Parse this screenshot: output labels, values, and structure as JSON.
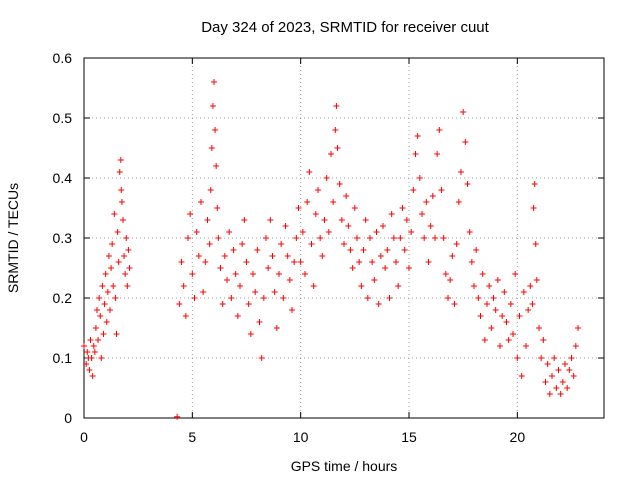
{
  "chart_data": {
    "type": "scatter",
    "title": "Day 324 of 2023, SRMTID for receiver cuut",
    "xlabel": "GPS time / hours",
    "ylabel": "SRMTID / TECUs",
    "xlim": [
      0,
      24
    ],
    "ylim": [
      0,
      0.6
    ],
    "xticks": [
      0,
      5,
      10,
      15,
      20
    ],
    "xtick_labels": [
      "0",
      "5",
      "10",
      "15",
      "20"
    ],
    "yticks": [
      0,
      0.1,
      0.2,
      0.3,
      0.4,
      0.5,
      0.6
    ],
    "ytick_labels": [
      "0",
      "0.1",
      "0.2",
      "0.3",
      "0.4",
      "0.5",
      "0.6"
    ],
    "grid": true,
    "marker": "+",
    "color": "#ff0000",
    "series": [
      {
        "name": "SRMTID",
        "points": [
          [
            0.0,
            0.12
          ],
          [
            0.1,
            0.09
          ],
          [
            0.15,
            0.11
          ],
          [
            0.2,
            0.1
          ],
          [
            0.25,
            0.08
          ],
          [
            0.3,
            0.13
          ],
          [
            0.35,
            0.1
          ],
          [
            0.4,
            0.07
          ],
          [
            0.45,
            0.12
          ],
          [
            0.5,
            0.11
          ],
          [
            0.55,
            0.15
          ],
          [
            0.6,
            0.18
          ],
          [
            0.65,
            0.13
          ],
          [
            0.7,
            0.2
          ],
          [
            0.75,
            0.17
          ],
          [
            0.8,
            0.1
          ],
          [
            0.85,
            0.22
          ],
          [
            0.9,
            0.14
          ],
          [
            0.95,
            0.19
          ],
          [
            1.0,
            0.24
          ],
          [
            1.05,
            0.16
          ],
          [
            1.1,
            0.21
          ],
          [
            1.15,
            0.27
          ],
          [
            1.2,
            0.18
          ],
          [
            1.25,
            0.25
          ],
          [
            1.3,
            0.29
          ],
          [
            1.35,
            0.22
          ],
          [
            1.4,
            0.34
          ],
          [
            1.45,
            0.2
          ],
          [
            1.5,
            0.14
          ],
          [
            1.55,
            0.31
          ],
          [
            1.6,
            0.26
          ],
          [
            1.65,
            0.41
          ],
          [
            1.7,
            0.43
          ],
          [
            1.72,
            0.38
          ],
          [
            1.75,
            0.36
          ],
          [
            1.8,
            0.33
          ],
          [
            1.85,
            0.27
          ],
          [
            1.9,
            0.24
          ],
          [
            1.95,
            0.3
          ],
          [
            2.0,
            0.22
          ],
          [
            2.05,
            0.28
          ],
          [
            2.1,
            0.25
          ],
          [
            4.3,
            0.002
          ],
          [
            4.4,
            0.19
          ],
          [
            4.5,
            0.26
          ],
          [
            4.6,
            0.22
          ],
          [
            4.7,
            0.17
          ],
          [
            4.8,
            0.3
          ],
          [
            4.9,
            0.34
          ],
          [
            5.0,
            0.24
          ],
          [
            5.1,
            0.2
          ],
          [
            5.2,
            0.31
          ],
          [
            5.3,
            0.27
          ],
          [
            5.4,
            0.36
          ],
          [
            5.5,
            0.21
          ],
          [
            5.6,
            0.26
          ],
          [
            5.7,
            0.33
          ],
          [
            5.8,
            0.29
          ],
          [
            5.85,
            0.38
          ],
          [
            5.9,
            0.45
          ],
          [
            5.95,
            0.52
          ],
          [
            6.0,
            0.56
          ],
          [
            6.05,
            0.48
          ],
          [
            6.1,
            0.42
          ],
          [
            6.15,
            0.35
          ],
          [
            6.2,
            0.3
          ],
          [
            6.3,
            0.25
          ],
          [
            6.4,
            0.19
          ],
          [
            6.5,
            0.27
          ],
          [
            6.6,
            0.23
          ],
          [
            6.7,
            0.31
          ],
          [
            6.8,
            0.2
          ],
          [
            6.9,
            0.28
          ],
          [
            7.0,
            0.24
          ],
          [
            7.1,
            0.17
          ],
          [
            7.2,
            0.22
          ],
          [
            7.3,
            0.29
          ],
          [
            7.4,
            0.33
          ],
          [
            7.5,
            0.26
          ],
          [
            7.6,
            0.19
          ],
          [
            7.7,
            0.14
          ],
          [
            7.8,
            0.24
          ],
          [
            7.9,
            0.21
          ],
          [
            8.0,
            0.28
          ],
          [
            8.1,
            0.16
          ],
          [
            8.2,
            0.1
          ],
          [
            8.3,
            0.2
          ],
          [
            8.4,
            0.3
          ],
          [
            8.5,
            0.25
          ],
          [
            8.6,
            0.33
          ],
          [
            8.7,
            0.27
          ],
          [
            8.8,
            0.21
          ],
          [
            8.9,
            0.15
          ],
          [
            9.0,
            0.24
          ],
          [
            9.1,
            0.29
          ],
          [
            9.2,
            0.2
          ],
          [
            9.3,
            0.32
          ],
          [
            9.4,
            0.27
          ],
          [
            9.5,
            0.23
          ],
          [
            9.6,
            0.18
          ],
          [
            9.7,
            0.26
          ],
          [
            9.8,
            0.3
          ],
          [
            9.9,
            0.35
          ],
          [
            10.0,
            0.26
          ],
          [
            10.1,
            0.31
          ],
          [
            10.2,
            0.24
          ],
          [
            10.3,
            0.36
          ],
          [
            10.4,
            0.41
          ],
          [
            10.5,
            0.29
          ],
          [
            10.6,
            0.22
          ],
          [
            10.7,
            0.34
          ],
          [
            10.8,
            0.38
          ],
          [
            10.9,
            0.3
          ],
          [
            11.0,
            0.27
          ],
          [
            11.1,
            0.33
          ],
          [
            11.2,
            0.4
          ],
          [
            11.3,
            0.31
          ],
          [
            11.4,
            0.44
          ],
          [
            11.5,
            0.36
          ],
          [
            11.6,
            0.48
          ],
          [
            11.65,
            0.52
          ],
          [
            11.7,
            0.45
          ],
          [
            11.8,
            0.39
          ],
          [
            11.9,
            0.33
          ],
          [
            12.0,
            0.29
          ],
          [
            12.1,
            0.37
          ],
          [
            12.2,
            0.32
          ],
          [
            12.3,
            0.28
          ],
          [
            12.4,
            0.25
          ],
          [
            12.5,
            0.35
          ],
          [
            12.6,
            0.3
          ],
          [
            12.7,
            0.26
          ],
          [
            12.8,
            0.22
          ],
          [
            12.9,
            0.28
          ],
          [
            13.0,
            0.33
          ],
          [
            13.1,
            0.2
          ],
          [
            13.2,
            0.3
          ],
          [
            13.3,
            0.26
          ],
          [
            13.4,
            0.23
          ],
          [
            13.5,
            0.31
          ],
          [
            13.6,
            0.19
          ],
          [
            13.7,
            0.27
          ],
          [
            13.8,
            0.32
          ],
          [
            13.9,
            0.25
          ],
          [
            14.0,
            0.28
          ],
          [
            14.1,
            0.2
          ],
          [
            14.2,
            0.34
          ],
          [
            14.3,
            0.3
          ],
          [
            14.4,
            0.26
          ],
          [
            14.5,
            0.22
          ],
          [
            14.6,
            0.3
          ],
          [
            14.7,
            0.35
          ],
          [
            14.8,
            0.28
          ],
          [
            14.9,
            0.33
          ],
          [
            15.0,
            0.25
          ],
          [
            15.1,
            0.31
          ],
          [
            15.2,
            0.38
          ],
          [
            15.3,
            0.44
          ],
          [
            15.4,
            0.47
          ],
          [
            15.5,
            0.4
          ],
          [
            15.6,
            0.34
          ],
          [
            15.7,
            0.3
          ],
          [
            15.8,
            0.36
          ],
          [
            15.9,
            0.26
          ],
          [
            16.0,
            0.32
          ],
          [
            16.1,
            0.37
          ],
          [
            16.2,
            0.3
          ],
          [
            16.3,
            0.44
          ],
          [
            16.4,
            0.48
          ],
          [
            16.5,
            0.38
          ],
          [
            16.6,
            0.3
          ],
          [
            16.7,
            0.24
          ],
          [
            16.8,
            0.2
          ],
          [
            16.9,
            0.23
          ],
          [
            17.0,
            0.27
          ],
          [
            17.1,
            0.19
          ],
          [
            17.2,
            0.29
          ],
          [
            17.3,
            0.36
          ],
          [
            17.4,
            0.41
          ],
          [
            17.5,
            0.51
          ],
          [
            17.6,
            0.46
          ],
          [
            17.7,
            0.39
          ],
          [
            17.8,
            0.31
          ],
          [
            17.9,
            0.26
          ],
          [
            18.0,
            0.22
          ],
          [
            18.1,
            0.28
          ],
          [
            18.2,
            0.2
          ],
          [
            18.3,
            0.17
          ],
          [
            18.4,
            0.24
          ],
          [
            18.5,
            0.13
          ],
          [
            18.6,
            0.19
          ],
          [
            18.7,
            0.22
          ],
          [
            18.8,
            0.15
          ],
          [
            18.9,
            0.2
          ],
          [
            19.0,
            0.18
          ],
          [
            19.1,
            0.23
          ],
          [
            19.2,
            0.12
          ],
          [
            19.3,
            0.17
          ],
          [
            19.4,
            0.21
          ],
          [
            19.5,
            0.16
          ],
          [
            19.6,
            0.13
          ],
          [
            19.7,
            0.19
          ],
          [
            19.8,
            0.14
          ],
          [
            19.9,
            0.24
          ],
          [
            20.0,
            0.1
          ],
          [
            20.1,
            0.17
          ],
          [
            20.2,
            0.07
          ],
          [
            20.3,
            0.21
          ],
          [
            20.4,
            0.12
          ],
          [
            20.5,
            0.18
          ],
          [
            20.6,
            0.22
          ],
          [
            20.7,
            0.19
          ],
          [
            20.75,
            0.35
          ],
          [
            20.8,
            0.39
          ],
          [
            20.85,
            0.29
          ],
          [
            20.9,
            0.23
          ],
          [
            21.0,
            0.15
          ],
          [
            21.1,
            0.1
          ],
          [
            21.2,
            0.13
          ],
          [
            21.3,
            0.06
          ],
          [
            21.4,
            0.09
          ],
          [
            21.5,
            0.04
          ],
          [
            21.6,
            0.07
          ],
          [
            21.7,
            0.1
          ],
          [
            21.8,
            0.05
          ],
          [
            21.9,
            0.08
          ],
          [
            22.0,
            0.04
          ],
          [
            22.1,
            0.06
          ],
          [
            22.2,
            0.09
          ],
          [
            22.3,
            0.05
          ],
          [
            22.4,
            0.08
          ],
          [
            22.5,
            0.1
          ],
          [
            22.6,
            0.07
          ],
          [
            22.7,
            0.12
          ],
          [
            22.8,
            0.15
          ]
        ]
      }
    ]
  }
}
